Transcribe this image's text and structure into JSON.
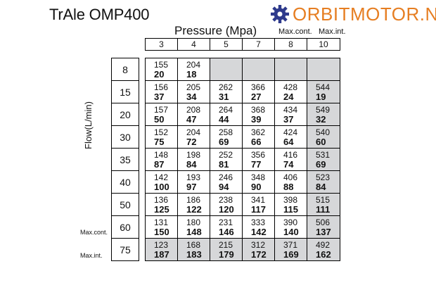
{
  "title": "TrAle OMP400",
  "logo": {
    "text": "ORBITMOTOR.NL",
    "icon": "gear-icon",
    "color": "#e67e22",
    "icon_color": "#2e3a8c"
  },
  "pressure_title": "Pressure (Mpa)",
  "max_cont_label": "Max.cont.",
  "max_int_label": "Max.int.",
  "flow_axis_label": "Flow(L/min)",
  "pressures": [
    "3",
    "4",
    "5",
    "7",
    "8",
    "10"
  ],
  "rows": [
    {
      "flow": "8",
      "note": "",
      "cells": [
        [
          "155",
          "20"
        ],
        [
          "204",
          "18"
        ],
        [
          "",
          ""
        ],
        [
          "",
          ""
        ],
        [
          "",
          ""
        ],
        [
          "",
          ""
        ]
      ]
    },
    {
      "flow": "15",
      "note": "",
      "cells": [
        [
          "156",
          "37"
        ],
        [
          "205",
          "34"
        ],
        [
          "262",
          "31"
        ],
        [
          "366",
          "27"
        ],
        [
          "428",
          "24"
        ],
        [
          "544",
          "19"
        ]
      ]
    },
    {
      "flow": "20",
      "note": "",
      "cells": [
        [
          "157",
          "50"
        ],
        [
          "208",
          "47"
        ],
        [
          "264",
          "44"
        ],
        [
          "368",
          "39"
        ],
        [
          "434",
          "37"
        ],
        [
          "549",
          "32"
        ]
      ]
    },
    {
      "flow": "30",
      "note": "",
      "cells": [
        [
          "152",
          "75"
        ],
        [
          "204",
          "72"
        ],
        [
          "258",
          "69"
        ],
        [
          "362",
          "66"
        ],
        [
          "424",
          "64"
        ],
        [
          "540",
          "60"
        ]
      ]
    },
    {
      "flow": "35",
      "note": "",
      "cells": [
        [
          "148",
          "87"
        ],
        [
          "198",
          "84"
        ],
        [
          "252",
          "81"
        ],
        [
          "356",
          "77"
        ],
        [
          "416",
          "74"
        ],
        [
          "531",
          "69"
        ]
      ]
    },
    {
      "flow": "40",
      "note": "",
      "cells": [
        [
          "142",
          "100"
        ],
        [
          "193",
          "97"
        ],
        [
          "246",
          "94"
        ],
        [
          "348",
          "90"
        ],
        [
          "406",
          "88"
        ],
        [
          "523",
          "84"
        ]
      ]
    },
    {
      "flow": "50",
      "note": "",
      "cells": [
        [
          "136",
          "125"
        ],
        [
          "186",
          "122"
        ],
        [
          "238",
          "120"
        ],
        [
          "341",
          "117"
        ],
        [
          "398",
          "115"
        ],
        [
          "515",
          "111"
        ]
      ]
    },
    {
      "flow": "60",
      "note": "Max.cont.",
      "cells": [
        [
          "131",
          "150"
        ],
        [
          "180",
          "148"
        ],
        [
          "231",
          "146"
        ],
        [
          "333",
          "142"
        ],
        [
          "390",
          "140"
        ],
        [
          "506",
          "137"
        ]
      ]
    },
    {
      "flow": "75",
      "note": "Max.int.",
      "cells": [
        [
          "123",
          "187"
        ],
        [
          "168",
          "183"
        ],
        [
          "215",
          "179"
        ],
        [
          "312",
          "172"
        ],
        [
          "371",
          "169"
        ],
        [
          "492",
          "162"
        ]
      ]
    }
  ]
}
